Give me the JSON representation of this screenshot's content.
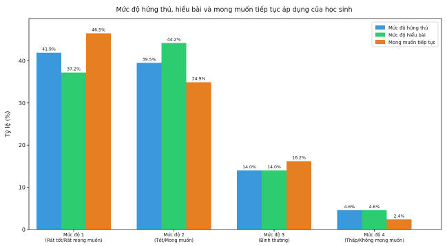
{
  "chart_data": {
    "type": "bar",
    "title": "Mức độ hứng thú, hiểu bài và mong muốn tiếp tục áp dụng của học sinh",
    "xlabel": "",
    "ylabel": "Tỷ lệ (%)",
    "ylim": [
      0,
      50
    ],
    "yticks": [
      0,
      10,
      20,
      30,
      40
    ],
    "grid": false,
    "legend_position": "top-right",
    "categories": [
      [
        "Mức độ 1",
        "(Rất tốt/Rất mong muốn)"
      ],
      [
        "Mức độ 2",
        "(Tốt/Mong muốn)"
      ],
      [
        "Mức độ 3",
        "(Bình thường)"
      ],
      [
        "Mức độ 4",
        "(Thấp/Không mong muốn)"
      ]
    ],
    "series": [
      {
        "name": "Mức độ hứng thú",
        "color": "#3a98db",
        "values": [
          41.9,
          39.5,
          14.0,
          4.6
        ],
        "labels": [
          "41.9%",
          "39.5%",
          "14.0%",
          "4.6%"
        ]
      },
      {
        "name": "Mức độ hiểu bài",
        "color": "#2ecc71",
        "values": [
          37.2,
          44.2,
          14.0,
          4.6
        ],
        "labels": [
          "37.2%",
          "44.2%",
          "14.0%",
          "4.6%"
        ]
      },
      {
        "name": "Mong muốn tiếp tục",
        "color": "#e67e22",
        "values": [
          46.5,
          34.9,
          16.2,
          2.4
        ],
        "labels": [
          "46.5%",
          "34.9%",
          "16.2%",
          "2.4%"
        ]
      }
    ]
  }
}
